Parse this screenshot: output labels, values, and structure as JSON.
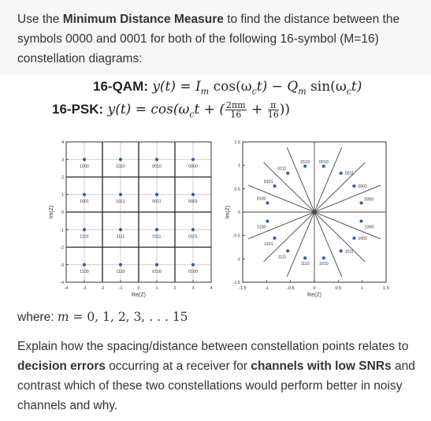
{
  "question": {
    "intro_1": "Use the ",
    "intro_bold": "Minimum Distance Measure",
    "intro_2": " to find the distance between the symbols 0000 and 0001 for both of the following 16-symbol (M=16) constellation diagrams:"
  },
  "equations": {
    "qam_label": "16-QAM:",
    "qam_expr": "y(t) = I",
    "qam_sub_m": "m",
    "qam_cos": " cos(ω",
    "qam_c": "c",
    "qam_mid": "t) − Q",
    "qam_sin": " sin(ω",
    "qam_end": "t)",
    "psk_label": "16-PSK:",
    "psk_expr": "y(t) = cos(ω",
    "psk_c": "c",
    "psk_t": "t + (",
    "frac1_num": "2πm",
    "frac1_den": "16",
    "plus": " + ",
    "frac2_num": "π",
    "frac2_den": "16",
    "psk_end": "))"
  },
  "where": {
    "prefix": "where: ",
    "m": "m",
    "rest": " = 0, 1, 2, 3, . . . 15"
  },
  "explanation": {
    "p1": "Explain how the spacing/distance between constellation points relates to ",
    "b1": "decision errors",
    "p2": " occurring at a receiver for ",
    "b2": "channels with low SNRs",
    "p3": " and contrast which of these two constellations would perform better in noisy channels and why."
  },
  "colors": {
    "marker": "#1f66b5",
    "grid": "#cfcfcf",
    "axis": "#333333"
  },
  "chart_data": [
    {
      "type": "scatter",
      "name_label": "16-QAM",
      "xlabel": "Re(Z)",
      "ylabel": "Im(Z)",
      "xlim": [
        -4,
        4
      ],
      "ylim": [
        -4,
        4
      ],
      "xticks": [
        "-4",
        "-3",
        "-2",
        "-1",
        "0",
        "1",
        "2",
        "3",
        "4"
      ],
      "yticks": [
        "4",
        "3",
        "2",
        "1",
        "0",
        "-1",
        "-2",
        "-3",
        "-4"
      ],
      "grid": true,
      "points": [
        {
          "x": -3,
          "y": 3,
          "label": "1000"
        },
        {
          "x": -1,
          "y": 3,
          "label": "1010"
        },
        {
          "x": 1,
          "y": 3,
          "label": "0010"
        },
        {
          "x": 3,
          "y": 3,
          "label": "0000"
        },
        {
          "x": -3,
          "y": 1,
          "label": "1001"
        },
        {
          "x": -1,
          "y": 1,
          "label": "1011"
        },
        {
          "x": 1,
          "y": 1,
          "label": "0011"
        },
        {
          "x": 3,
          "y": 1,
          "label": "0001"
        },
        {
          "x": -3,
          "y": -1,
          "label": "1101"
        },
        {
          "x": -1,
          "y": -1,
          "label": "1111"
        },
        {
          "x": 1,
          "y": -1,
          "label": "0111"
        },
        {
          "x": 3,
          "y": -1,
          "label": "0101"
        },
        {
          "x": -3,
          "y": -3,
          "label": "1100"
        },
        {
          "x": -1,
          "y": -3,
          "label": "1110"
        },
        {
          "x": 1,
          "y": -3,
          "label": "0110"
        },
        {
          "x": 3,
          "y": -3,
          "label": "0100"
        }
      ]
    },
    {
      "type": "scatter",
      "name_label": "16-PSK",
      "xlabel": "Re(Z)",
      "ylabel": "Im(Z)",
      "xlim": [
        -1.5,
        1.5
      ],
      "ylim": [
        -1.5,
        1.5
      ],
      "xticks": [
        "-1.5",
        "-1",
        "-0.5",
        "0",
        "0.5",
        "1",
        "1.5"
      ],
      "yticks": [
        "1.5",
        "1",
        "0.5",
        "0",
        "-0.5",
        "-1",
        "-1.5"
      ],
      "grid": false,
      "points": [
        {
          "x": 0.981,
          "y": 0.195,
          "label": "0000"
        },
        {
          "x": 0.831,
          "y": 0.556,
          "label": "0001"
        },
        {
          "x": 0.556,
          "y": 0.831,
          "label": "0011"
        },
        {
          "x": 0.195,
          "y": 0.981,
          "label": "0010"
        },
        {
          "x": -0.195,
          "y": 0.981,
          "label": "0110"
        },
        {
          "x": -0.556,
          "y": 0.831,
          "label": "0111"
        },
        {
          "x": -0.831,
          "y": 0.556,
          "label": "0101"
        },
        {
          "x": -0.981,
          "y": 0.195,
          "label": "0100"
        },
        {
          "x": -0.981,
          "y": -0.195,
          "label": "1100"
        },
        {
          "x": -0.831,
          "y": -0.556,
          "label": "1101"
        },
        {
          "x": -0.556,
          "y": -0.831,
          "label": "1111"
        },
        {
          "x": -0.195,
          "y": -0.981,
          "label": "1110"
        },
        {
          "x": 0.195,
          "y": -0.981,
          "label": "1010"
        },
        {
          "x": 0.556,
          "y": -0.831,
          "label": "1011"
        },
        {
          "x": 0.831,
          "y": -0.556,
          "label": "1001"
        },
        {
          "x": 0.981,
          "y": -0.195,
          "label": "1000"
        }
      ]
    }
  ]
}
